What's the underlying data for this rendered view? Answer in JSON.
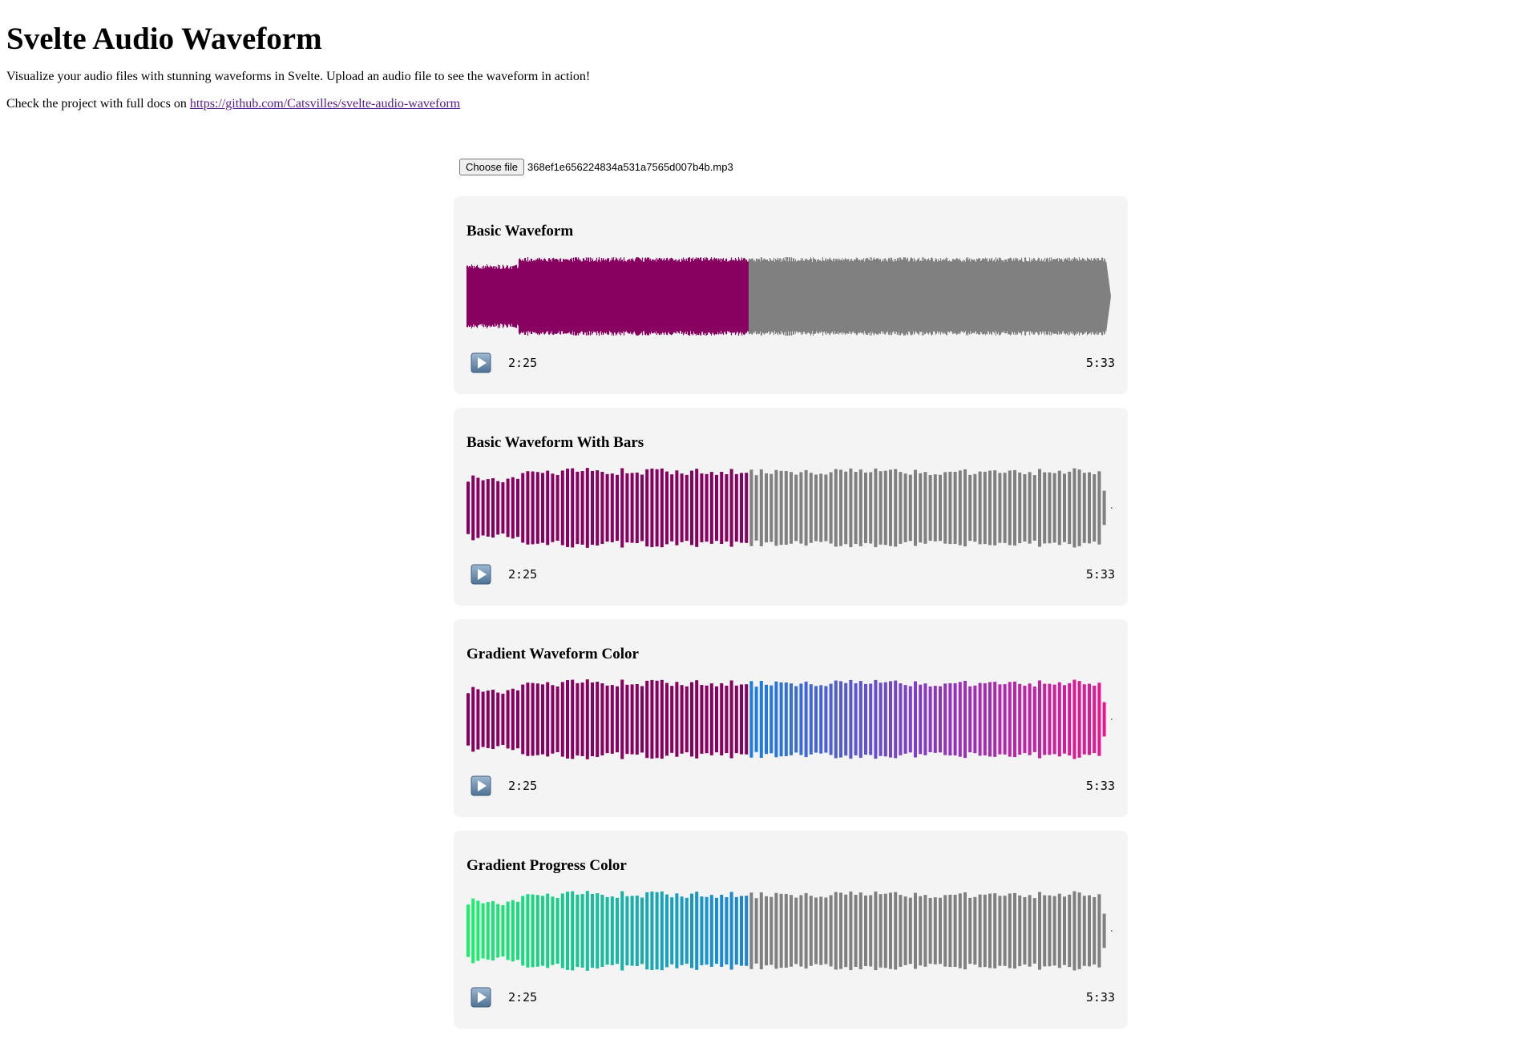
{
  "page": {
    "title": "Svelte Audio Waveform",
    "description": "Visualize your audio files with stunning waveforms in Svelte. Upload an audio file to see the waveform in action!",
    "docs_prefix": "Check the project with full docs on",
    "docs_link": "https://github.com/Catsvilles/svelte-audio-waveform"
  },
  "file_input": {
    "button_label": "Choose file",
    "file_name": "368ef1e656224834a531a7565d007b4b.mp3"
  },
  "player": {
    "current_time": "2:25",
    "duration": "5:33",
    "progress": 0.436
  },
  "colors": {
    "card_bg": "#f4f4f4",
    "progress": "#880060",
    "waveform": "#808080",
    "gradient_waveform": [
      "#1a7fe0",
      "#8a36c4",
      "#f0128a"
    ],
    "gradient_progress": [
      "#1cef6a",
      "#18b8a0",
      "#1a82dc"
    ]
  },
  "cards": [
    {
      "title": "Basic Waveform",
      "style": "continuous",
      "waveform_fill": "solid",
      "progress_fill": "solid"
    },
    {
      "title": "Basic Waveform With Bars",
      "style": "bars",
      "waveform_fill": "solid",
      "progress_fill": "solid"
    },
    {
      "title": "Gradient Waveform Color",
      "style": "bars",
      "waveform_fill": "gradient",
      "progress_fill": "solid"
    },
    {
      "title": "Gradient Progress Color",
      "style": "bars",
      "waveform_fill": "solid",
      "progress_fill": "gradient"
    }
  ]
}
